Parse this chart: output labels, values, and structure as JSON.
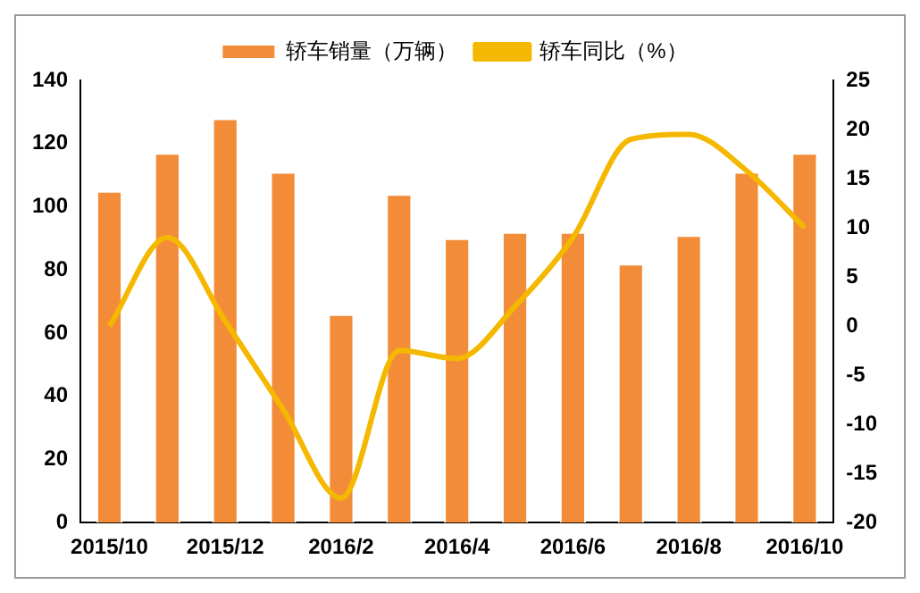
{
  "chart_data": {
    "type": "bar",
    "categories": [
      "2015/10",
      null,
      "2015/12",
      null,
      "2016/2",
      null,
      "2016/4",
      null,
      "2016/6",
      null,
      "2016/8",
      null,
      "2016/10"
    ],
    "series": [
      {
        "name": "轿车销量（万辆）",
        "color": "#f28c38",
        "values": [
          105,
          117,
          128,
          111,
          66,
          104,
          90,
          92,
          92,
          82,
          91,
          111,
          117
        ]
      },
      {
        "name": "轿车同比（%）",
        "type": "line",
        "axis": "y2",
        "color": "#f5b800",
        "values": [
          0,
          9,
          0.5,
          -8.5,
          -17.5,
          -2.5,
          -3.3,
          2,
          9,
          19,
          19.5,
          15.8,
          10
        ]
      }
    ],
    "ylim": [
      0,
      140
    ],
    "yticks": [
      0,
      20,
      40,
      60,
      80,
      100,
      120,
      140
    ],
    "y2lim": [
      -20,
      25
    ],
    "y2ticks": [
      -20,
      -15,
      -10,
      -5,
      0,
      5,
      10,
      15,
      20,
      25
    ],
    "grid": false,
    "legend": "top",
    "marker": "none"
  }
}
